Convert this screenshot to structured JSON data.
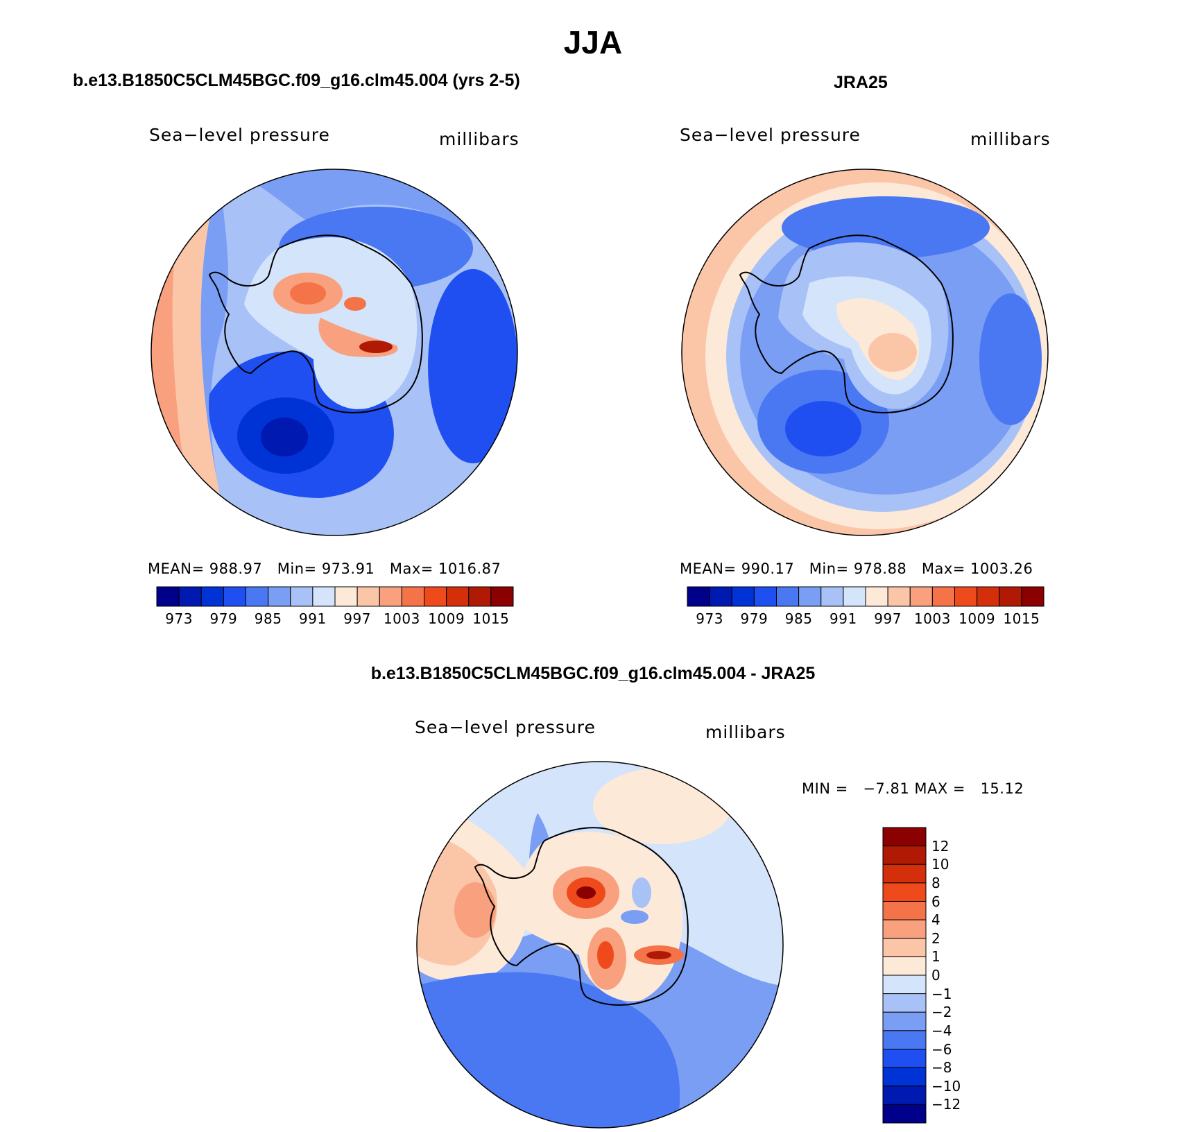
{
  "figure": {
    "season_title": "JJA"
  },
  "panels": [
    {
      "title": "b.e13.B1850C5CLM45BGC.f09_g16.clm45.004 (yrs 2-5)",
      "variable": "Sea−level pressure",
      "units": "millibars",
      "mean_label": "MEAN=",
      "mean_value": "988.97",
      "min_label": "Min=",
      "min_value": "973.91",
      "max_label": "Max=",
      "max_value": "1016.87"
    },
    {
      "title": "JRA25",
      "variable": "Sea−level pressure",
      "units": "millibars",
      "mean_label": "MEAN=",
      "mean_value": "990.17",
      "min_label": "Min=",
      "min_value": "978.88",
      "max_label": "Max=",
      "max_value": "1003.26"
    }
  ],
  "difference_panel": {
    "title": "b.e13.B1850C5CLM45BGC.f09_g16.clm45.004 - JRA25",
    "variable": "Sea−level pressure",
    "units": "millibars",
    "min_label": "MIN =",
    "min_value": "−7.81",
    "max_label": "MAX =",
    "max_value": "15.12"
  },
  "colorbar_abs": {
    "colors": [
      "#00008b",
      "#0019b0",
      "#0033d6",
      "#1f4ff0",
      "#4a78f2",
      "#7a9ef4",
      "#a8c2f7",
      "#d4e4fa",
      "#fde9d8",
      "#fbc6a8",
      "#f9a07e",
      "#f57349",
      "#ee4a1c",
      "#d42f0b",
      "#b01a05",
      "#8b0000"
    ],
    "tick_labels": [
      "973",
      "979",
      "985",
      "991",
      "997",
      "1003",
      "1009",
      "1015"
    ]
  },
  "colorbar_diff": {
    "colors": [
      "#8b0000",
      "#b01a05",
      "#d42f0b",
      "#ee4a1c",
      "#f57349",
      "#f9a07e",
      "#fbc6a8",
      "#fde9d8",
      "#d4e4fa",
      "#a8c2f7",
      "#7a9ef4",
      "#4a78f2",
      "#1f4ff0",
      "#0033d6",
      "#0019b0",
      "#00008b"
    ],
    "tick_labels": [
      "12",
      "10",
      "8",
      "6",
      "4",
      "2",
      "1",
      "0",
      "−1",
      "−2",
      "−4",
      "−6",
      "−8",
      "−10",
      "−12"
    ]
  },
  "chart_data": [
    {
      "type": "heatmap",
      "title": "b.e13.B1850C5CLM45BGC.f09_g16.clm45.004 (yrs 2-5)",
      "field": "Sea-level pressure",
      "units": "millibars",
      "projection": "south polar stereographic",
      "levels": [
        973,
        976,
        979,
        982,
        985,
        988,
        991,
        994,
        997,
        1000,
        1003,
        1006,
        1009,
        1012,
        1015
      ],
      "stats": {
        "mean": 988.97,
        "min": 973.91,
        "max": 1016.87
      }
    },
    {
      "type": "heatmap",
      "title": "JRA25",
      "field": "Sea-level pressure",
      "units": "millibars",
      "projection": "south polar stereographic",
      "levels": [
        973,
        976,
        979,
        982,
        985,
        988,
        991,
        994,
        997,
        1000,
        1003,
        1006,
        1009,
        1012,
        1015
      ],
      "stats": {
        "mean": 990.17,
        "min": 978.88,
        "max": 1003.26
      }
    },
    {
      "type": "heatmap",
      "title": "b.e13.B1850C5CLM45BGC.f09_g16.clm45.004 - JRA25",
      "field": "Sea-level pressure",
      "units": "millibars",
      "projection": "south polar stereographic",
      "levels": [
        -12,
        -10,
        -8,
        -6,
        -4,
        -2,
        -1,
        0,
        1,
        2,
        4,
        6,
        8,
        10,
        12
      ],
      "stats": {
        "min": -7.81,
        "max": 15.12
      }
    }
  ]
}
